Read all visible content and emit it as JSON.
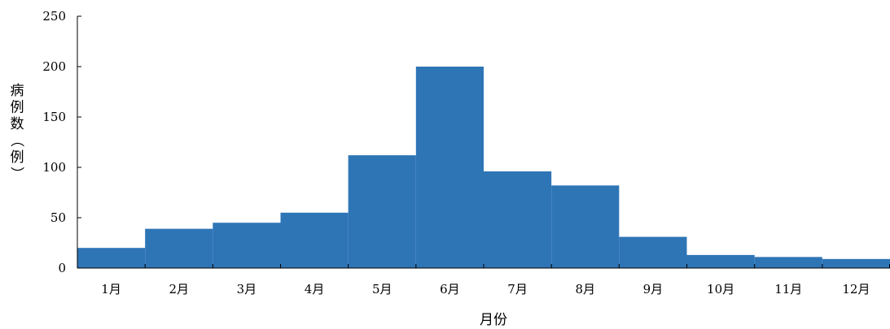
{
  "chart_data": {
    "type": "bar",
    "categories": [
      "1月",
      "2月",
      "3月",
      "4月",
      "5月",
      "6月",
      "7月",
      "8月",
      "9月",
      "10月",
      "11月",
      "12月"
    ],
    "values": [
      20,
      39,
      45,
      55,
      112,
      200,
      96,
      82,
      31,
      13,
      11,
      9
    ],
    "xlabel": "月份",
    "ylabel": "病例数（例）",
    "ylim": [
      0,
      250
    ],
    "yticks": [
      0,
      50,
      100,
      150,
      200,
      250
    ],
    "bar_color": "#2E75B6",
    "grid": false,
    "legend": "none"
  }
}
